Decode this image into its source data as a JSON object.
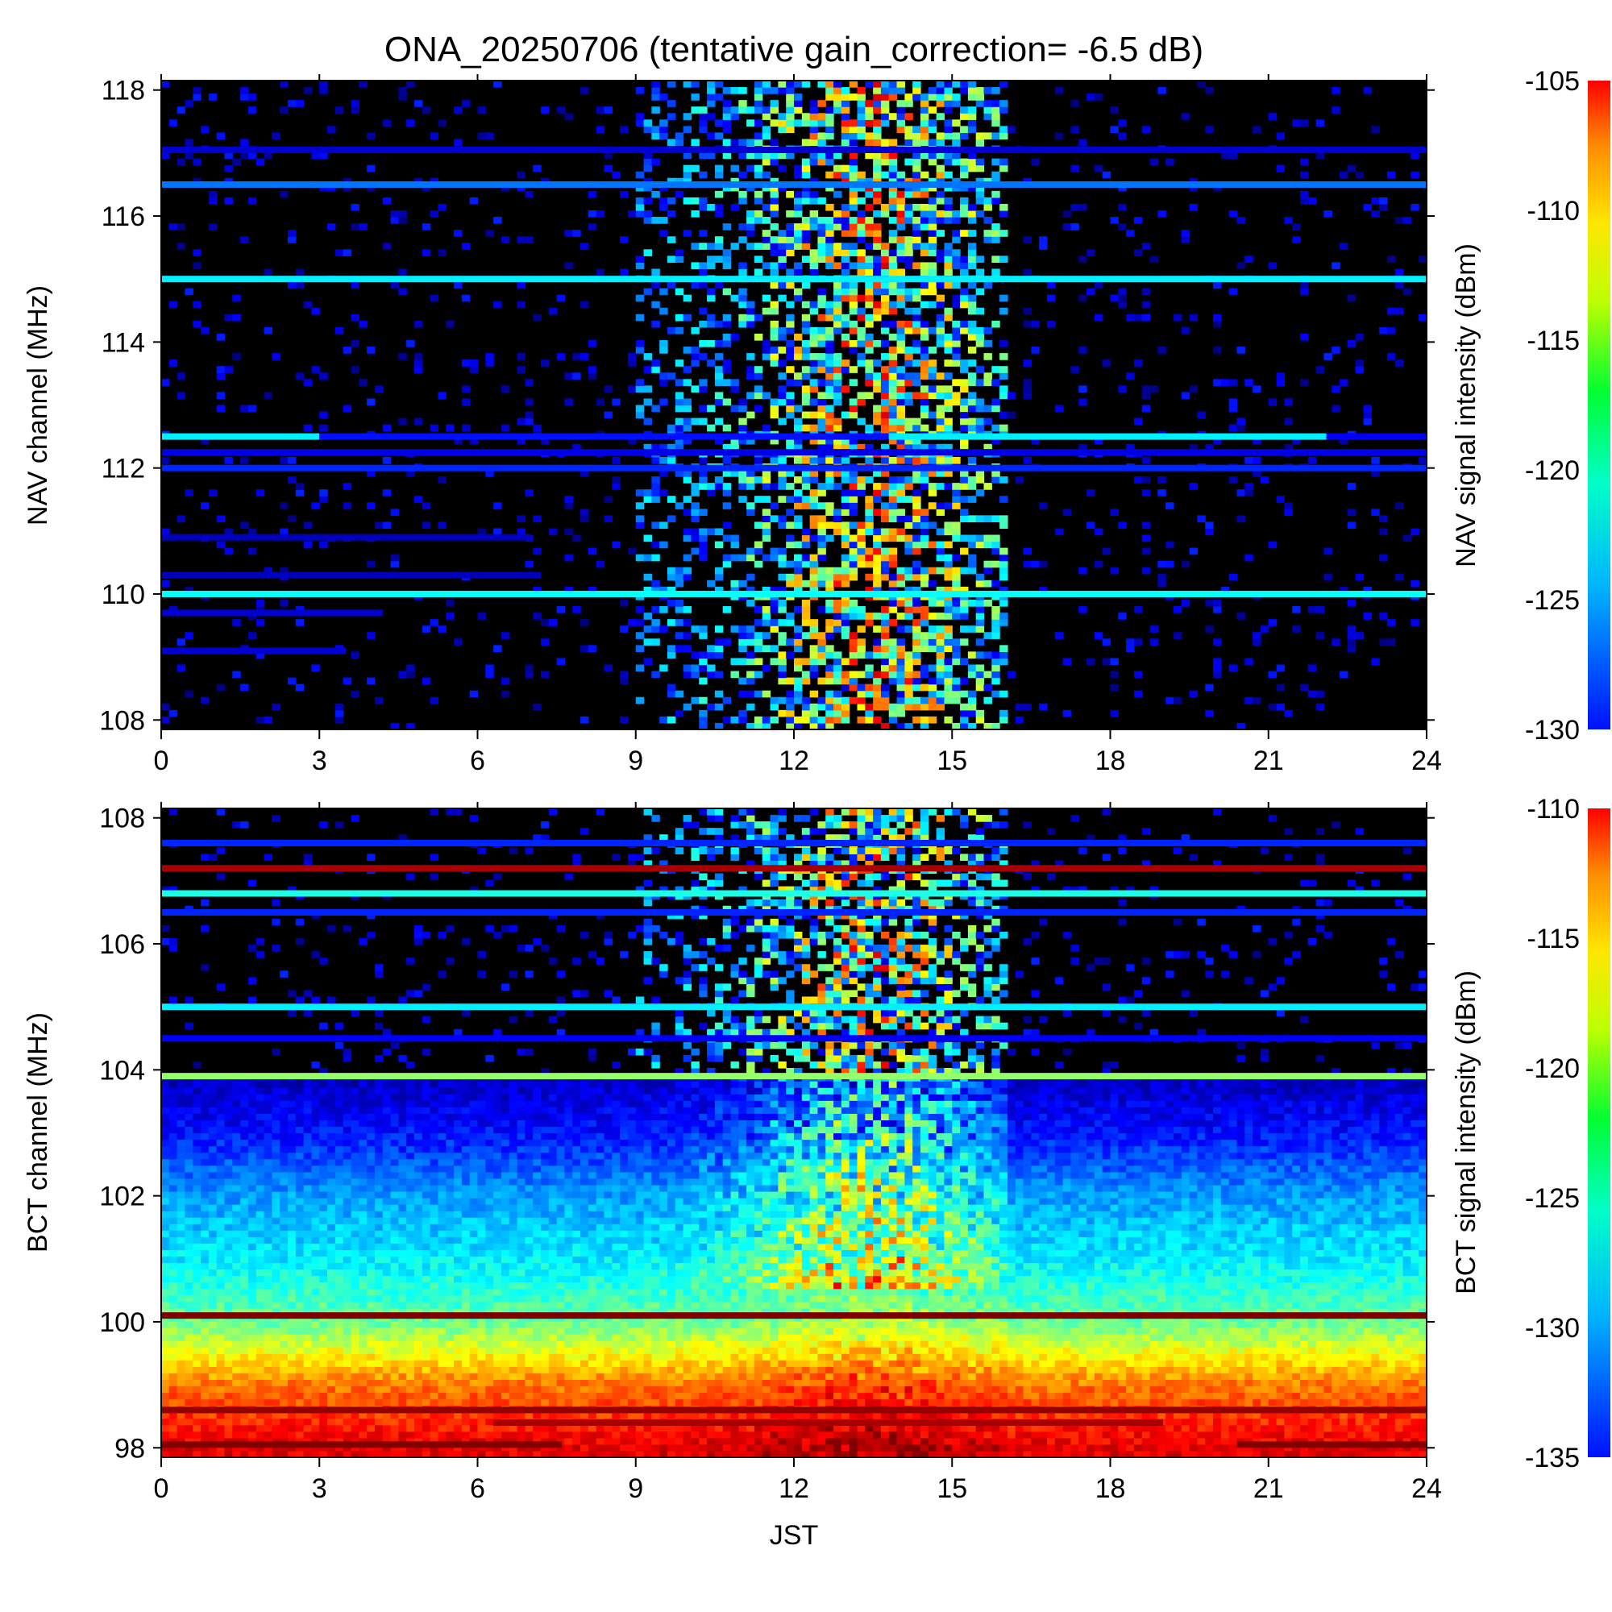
{
  "chart_data": [
    {
      "type": "heatmap",
      "title": "ONA_20250706 (tentative gain_correction= -6.5 dB)",
      "xlabel": "",
      "ylabel": "NAV channel (MHz)",
      "colorbar_label": "NAV signal intensity (dBm)",
      "xlim": [
        0,
        24
      ],
      "ylim": [
        107.85,
        118.15
      ],
      "xticks": [
        0,
        3,
        6,
        9,
        12,
        15,
        18,
        21,
        24
      ],
      "yticks": [
        108,
        110,
        112,
        114,
        116,
        118
      ],
      "color_range": [
        -130,
        -105
      ],
      "colorbar_ticks": [
        -130,
        -125,
        -120,
        -115,
        -110,
        -105
      ],
      "background_value": -140,
      "steady_channels": [
        {
          "freq": 116.5,
          "x": [
            0,
            24
          ],
          "value": -124
        },
        {
          "freq": 115.0,
          "x": [
            0,
            24
          ],
          "value": -121
        },
        {
          "freq": 112.5,
          "x": [
            0,
            3
          ],
          "value": -121
        },
        {
          "freq": 112.5,
          "x": [
            3,
            13.8
          ],
          "value": -126.5
        },
        {
          "freq": 112.5,
          "x": [
            13.8,
            22.1
          ],
          "value": -121
        },
        {
          "freq": 112.5,
          "x": [
            22.1,
            24
          ],
          "value": -127
        },
        {
          "freq": 112.25,
          "x": [
            0,
            24
          ],
          "value": -127.5
        },
        {
          "freq": 112.0,
          "x": [
            0,
            24
          ],
          "value": -126
        },
        {
          "freq": 110.0,
          "x": [
            0,
            24
          ],
          "value": -120.5
        },
        {
          "freq": 117.05,
          "x": [
            0,
            24
          ],
          "value": -128
        },
        {
          "freq": 109.7,
          "x": [
            0,
            4.2
          ],
          "value": -128
        },
        {
          "freq": 109.1,
          "x": [
            0,
            3.5
          ],
          "value": -128
        },
        {
          "freq": 110.9,
          "x": [
            0,
            7
          ],
          "value": -128.5
        },
        {
          "freq": 110.3,
          "x": [
            0,
            7.2
          ],
          "value": -128.5
        }
      ],
      "activity_window": {
        "x": [
          9,
          16
        ],
        "peak_x": 13.5
      }
    },
    {
      "type": "heatmap",
      "title": "",
      "xlabel": "JST",
      "ylabel": "BCT channel (MHz)",
      "colorbar_label": "BCT signal intensity (dBm)",
      "xlim": [
        0,
        24
      ],
      "ylim": [
        97.85,
        108.15
      ],
      "xticks": [
        0,
        3,
        6,
        9,
        12,
        15,
        18,
        21,
        24
      ],
      "yticks": [
        98,
        100,
        102,
        104,
        106,
        108
      ],
      "color_range": [
        -135,
        -110
      ],
      "colorbar_ticks": [
        -135,
        -130,
        -125,
        -120,
        -115,
        -110
      ],
      "background_value": -145,
      "baseline_profile": [
        {
          "freq": 98.0,
          "value": -112.5
        },
        {
          "freq": 99.0,
          "value": -116
        },
        {
          "freq": 100.0,
          "value": -123
        },
        {
          "freq": 101.0,
          "value": -126
        },
        {
          "freq": 102.0,
          "value": -128
        },
        {
          "freq": 103.0,
          "value": -131.5
        },
        {
          "freq": 103.9,
          "value": -133.5
        }
      ],
      "steady_channels": [
        {
          "freq": 107.2,
          "x": [
            0,
            24
          ],
          "value": -111
        },
        {
          "freq": 106.8,
          "x": [
            0,
            24
          ],
          "value": -125
        },
        {
          "freq": 106.5,
          "x": [
            0,
            24
          ],
          "value": -131
        },
        {
          "freq": 105.0,
          "x": [
            0,
            24
          ],
          "value": -126
        },
        {
          "freq": 104.5,
          "x": [
            0,
            24
          ],
          "value": -132
        },
        {
          "freq": 103.9,
          "x": [
            0,
            24
          ],
          "value": -122
        },
        {
          "freq": 107.6,
          "x": [
            0,
            24
          ],
          "value": -131
        },
        {
          "freq": 100.1,
          "x": [
            0,
            24
          ],
          "value": -110
        },
        {
          "freq": 98.6,
          "x": [
            0,
            24
          ],
          "value": -110.5
        },
        {
          "freq": 98.4,
          "x": [
            6.3,
            19
          ],
          "value": -111
        },
        {
          "freq": 98.05,
          "x": [
            0,
            7.6
          ],
          "value": -110
        },
        {
          "freq": 98.05,
          "x": [
            20.4,
            24
          ],
          "value": -110
        }
      ],
      "activity_window": {
        "x": [
          9,
          16
        ],
        "peak_x": 13.5
      }
    }
  ]
}
